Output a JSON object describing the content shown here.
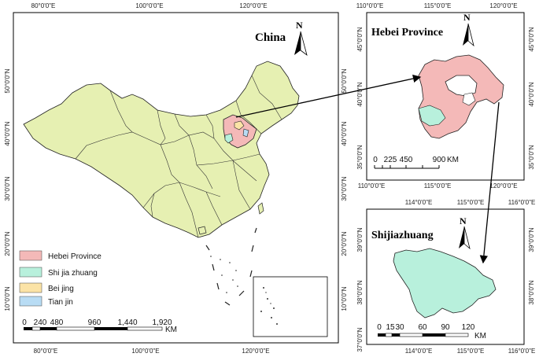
{
  "colors": {
    "china_fill": "#e6f0b2",
    "hebei_fill": "#f4b9b8",
    "shijiazhuang_fill": "#b8f0dc",
    "beijing_fill": "#fbe3a6",
    "tianjin_fill": "#b8dcf4",
    "border": "#222222"
  },
  "china_map": {
    "title": "China",
    "north_label": "N",
    "top_ticks": [
      "80°0'0\"E",
      "100°0'0\"E",
      "120°0'0\"E"
    ],
    "bottom_ticks": [
      "80°0'0\"E",
      "100°0'0\"E",
      "120°0'0\"E"
    ],
    "left_ticks": [
      "50°0'0\"N",
      "40°0'0\"N",
      "30°0'0\"N",
      "20°0'0\"N",
      "10°0'0\"N"
    ],
    "right_ticks": [
      "50°0'0\"N",
      "40°0'0\"N",
      "30°0'0\"N",
      "20°0'0\"N",
      "10°0'0\"N"
    ],
    "legend": [
      {
        "label": "Hebei Province",
        "color": "#f4b9b8"
      },
      {
        "label": "Shi jia zhuang",
        "color": "#b8f0dc"
      },
      {
        "label": "Bei jing",
        "color": "#fbe3a6"
      },
      {
        "label": "Tian jin",
        "color": "#b8dcf4"
      }
    ],
    "scale_labels": [
      "0",
      "240",
      "480",
      "960",
      "1,440",
      "1,920"
    ],
    "scale_unit": "KM"
  },
  "hebei_map": {
    "title": "Hebei Province",
    "north_label": "N",
    "top_ticks": [
      "110°0'0\"E",
      "115°0'0\"E",
      "120°0'0\"E"
    ],
    "bottom_ticks": [
      "110°0'0\"E",
      "115°0'0\"E",
      "120°0'0\"E"
    ],
    "left_ticks": [
      "45°0'0\"N",
      "40°0'0\"N",
      "35°0'0\"N"
    ],
    "right_ticks": [
      "45°0'0\"N",
      "40°0'0\"N",
      "35°0'0\"N"
    ],
    "scale_labels": [
      "0",
      "225",
      "450",
      "900"
    ],
    "scale_unit": "KM"
  },
  "shijiazhuang_map": {
    "title": "Shijiazhuang",
    "north_label": "N",
    "top_ticks": [
      "114°0'0\"E",
      "115°0'0\"E",
      "116°0'0\"E"
    ],
    "bottom_ticks": [
      "114°0'0\"E",
      "115°0'0\"E",
      "116°0'0\"E"
    ],
    "left_ticks": [
      "39°0'0\"N",
      "38°0'0\"N",
      "37°0'0\"N"
    ],
    "right_ticks": [
      "39°0'0\"N",
      "38°0'0\"N"
    ],
    "scale_labels": [
      "0",
      "15",
      "30",
      "60",
      "90",
      "120"
    ],
    "scale_unit": "KM"
  }
}
